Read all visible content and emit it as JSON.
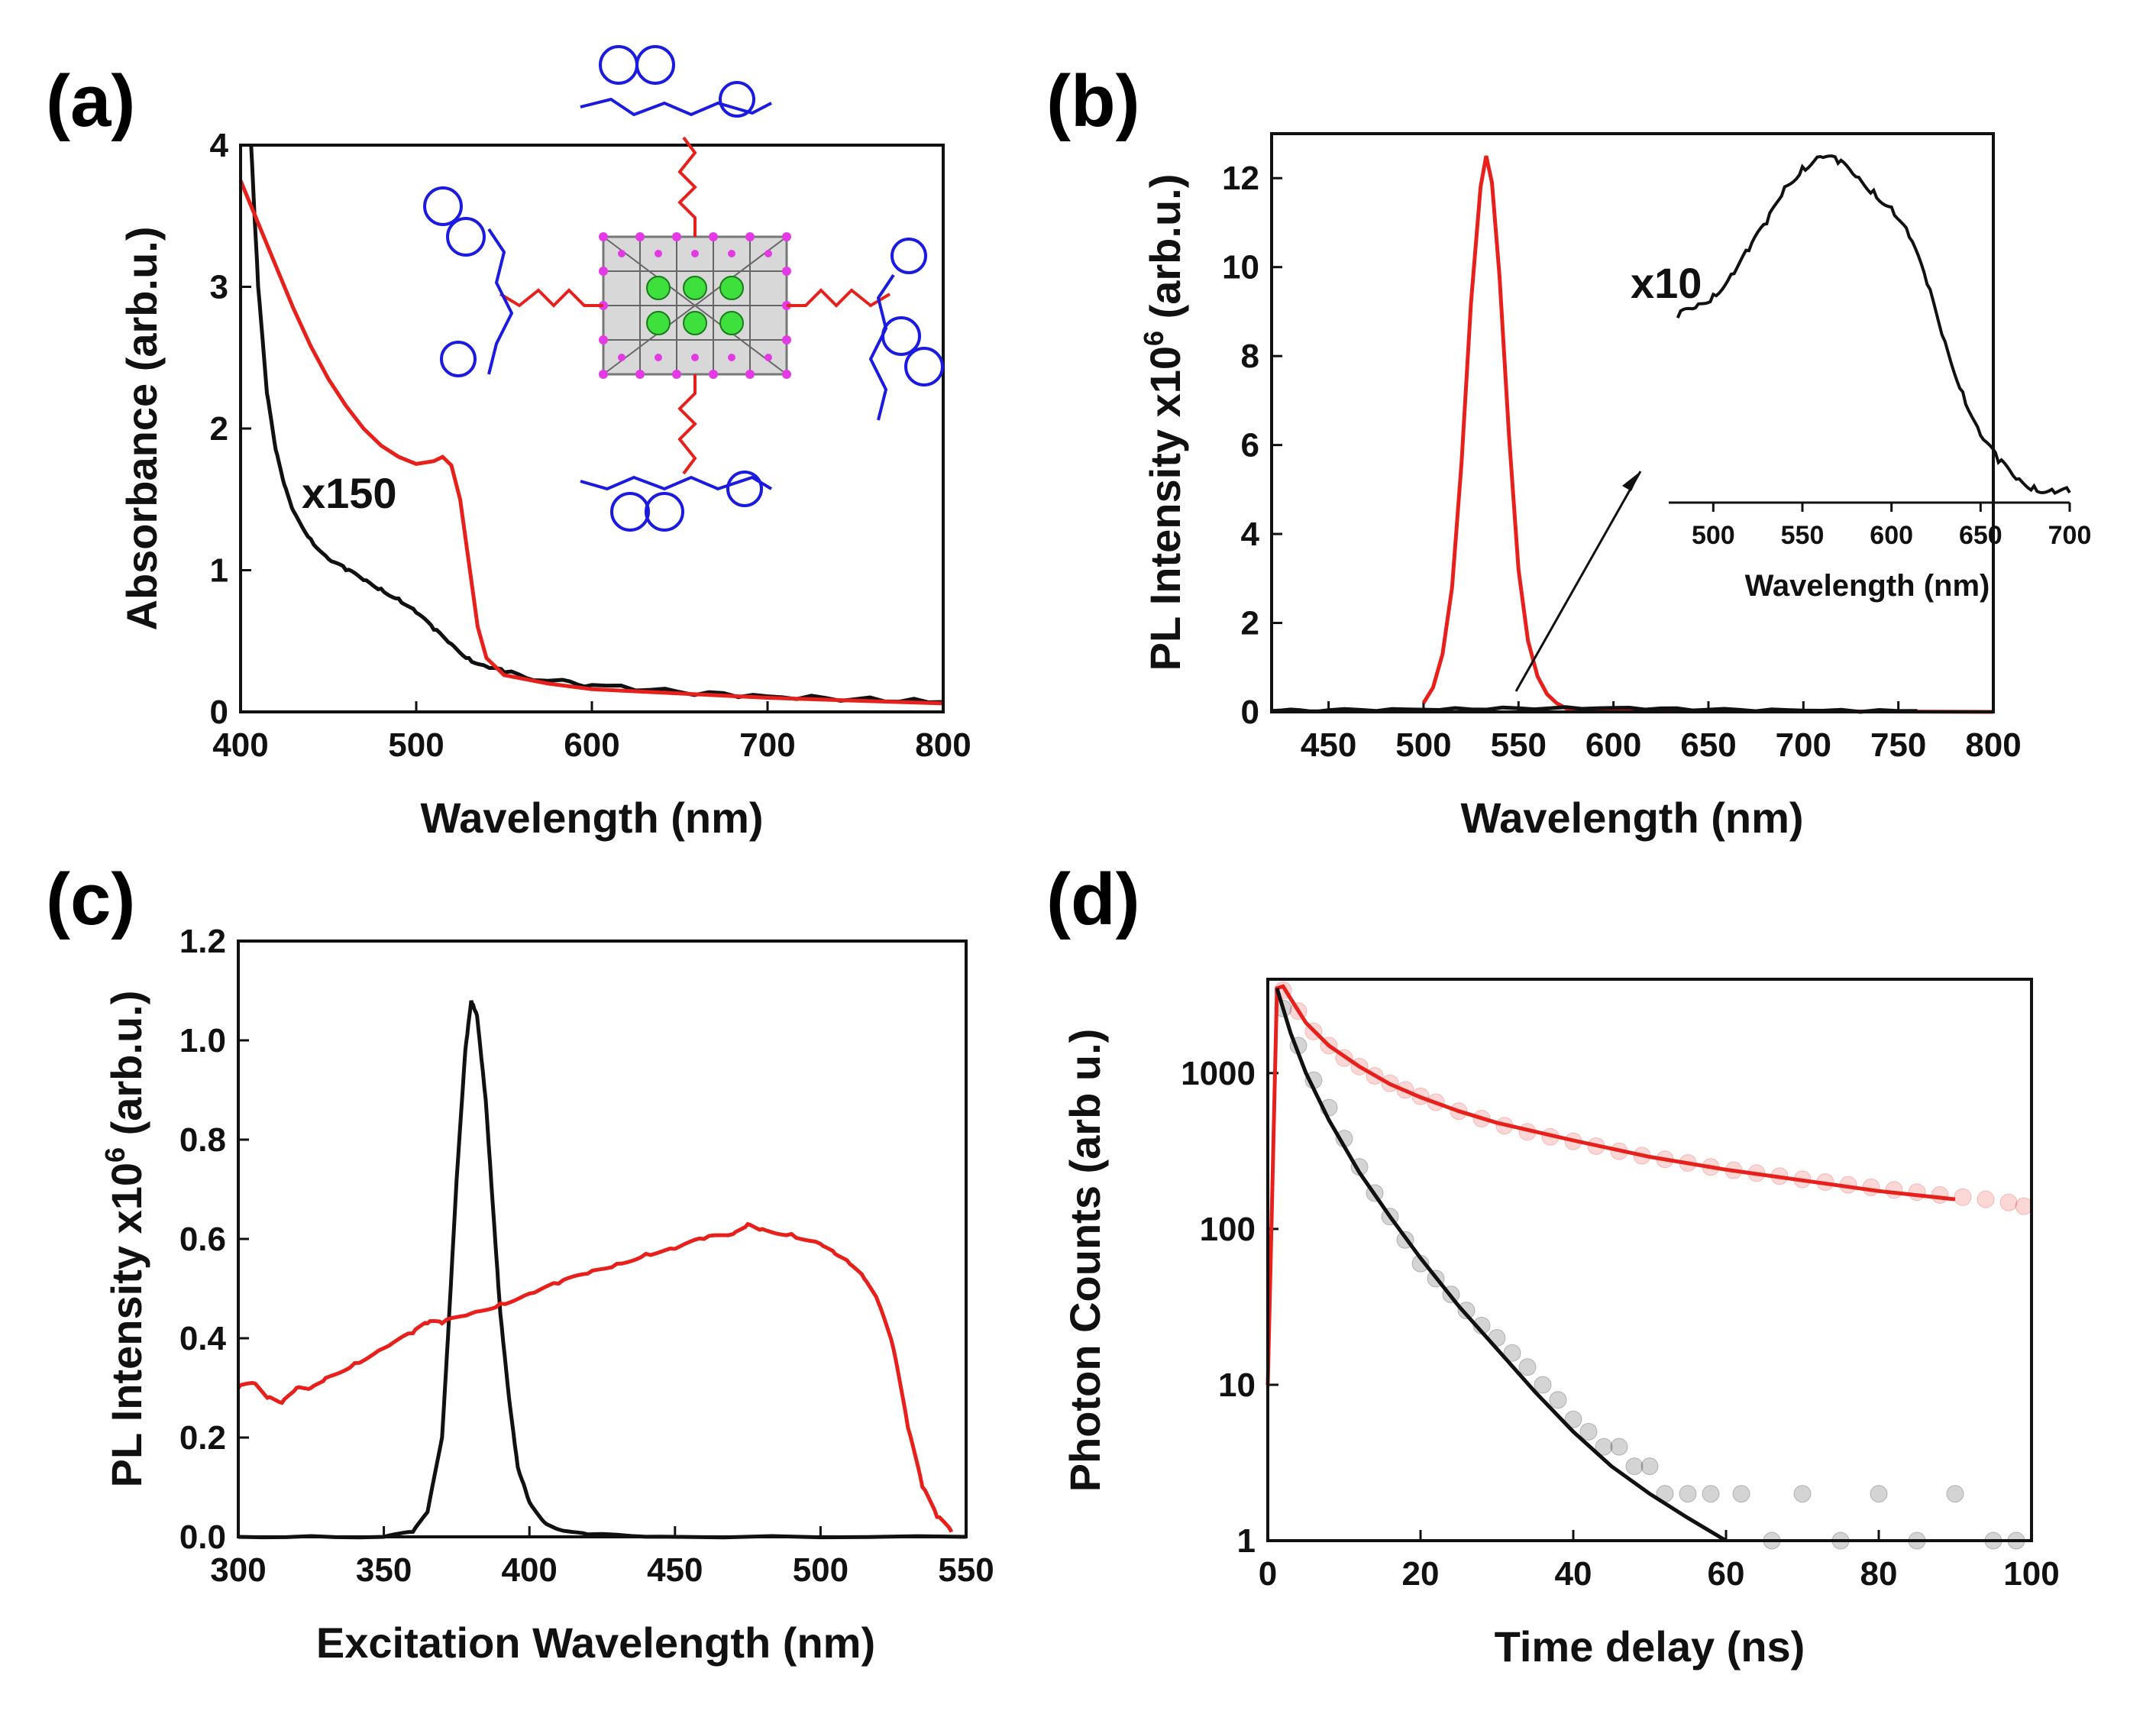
{
  "chart_data": [
    {
      "panel": "(a)",
      "type": "line",
      "xlabel": "Wavelength (nm)",
      "ylabel": "Absorbance (arb.u.)",
      "xlim": [
        400,
        800
      ],
      "ylim": [
        0,
        4
      ],
      "xticks": [
        400,
        500,
        600,
        700,
        800
      ],
      "yticks": [
        0,
        1,
        2,
        3,
        4
      ],
      "annotations": [
        "x150"
      ],
      "series": [
        {
          "name": "black",
          "color": "#111111",
          "x": [
            406,
            410,
            415,
            420,
            425,
            430,
            440,
            450,
            460,
            470,
            480,
            490,
            500,
            510,
            520,
            530,
            540,
            550,
            575,
            600,
            650,
            700,
            750,
            800
          ],
          "y": [
            4.0,
            3.0,
            2.25,
            1.85,
            1.6,
            1.42,
            1.22,
            1.08,
            1.0,
            0.93,
            0.87,
            0.8,
            0.7,
            0.58,
            0.48,
            0.38,
            0.32,
            0.28,
            0.22,
            0.19,
            0.14,
            0.11,
            0.09,
            0.07
          ]
        },
        {
          "name": "red",
          "color": "#e8201b",
          "x": [
            400,
            410,
            420,
            430,
            440,
            450,
            460,
            470,
            480,
            490,
            500,
            510,
            515,
            520,
            525,
            530,
            535,
            540,
            550,
            575,
            600,
            650,
            700,
            750,
            800
          ],
          "y": [
            3.75,
            3.45,
            3.15,
            2.85,
            2.58,
            2.35,
            2.16,
            2.0,
            1.88,
            1.8,
            1.75,
            1.77,
            1.8,
            1.74,
            1.5,
            1.05,
            0.6,
            0.38,
            0.26,
            0.2,
            0.16,
            0.13,
            0.1,
            0.08,
            0.06
          ]
        }
      ]
    },
    {
      "panel": "(b)",
      "type": "line",
      "xlabel": "Wavelength (nm)",
      "ylabel_main": "PL Intensity x10",
      "ylabel_sup": "6",
      "ylabel_tail": " (arb.u.)",
      "xlim": [
        420,
        800
      ],
      "ylim": [
        0,
        13
      ],
      "xticks": [
        450,
        500,
        550,
        600,
        650,
        700,
        750,
        800
      ],
      "yticks": [
        0,
        2,
        4,
        6,
        8,
        10,
        12
      ],
      "series": [
        {
          "name": "red",
          "color": "#e8201b",
          "x": [
            500,
            505,
            510,
            515,
            520,
            525,
            530,
            533,
            536,
            540,
            545,
            550,
            555,
            560,
            565,
            570,
            575,
            580,
            800
          ],
          "y": [
            0.2,
            0.55,
            1.3,
            2.8,
            5.6,
            9.2,
            11.8,
            12.5,
            11.9,
            9.8,
            6.2,
            3.2,
            1.6,
            0.8,
            0.4,
            0.2,
            0.08,
            0.03,
            0.0
          ]
        },
        {
          "name": "black",
          "color": "#111111",
          "x": [
            420,
            450,
            500,
            550,
            600,
            650,
            700,
            760
          ],
          "y": [
            0.02,
            0.04,
            0.05,
            0.08,
            0.09,
            0.05,
            0.03,
            0.02
          ]
        }
      ],
      "inset": {
        "annotation": "x10",
        "xlabel": "Wavelength (nm)",
        "xlim": [
          475,
          700
        ],
        "xticks": [
          500,
          550,
          600,
          650,
          700
        ],
        "series": {
          "name": "black",
          "color": "#111111",
          "x": [
            480,
            490,
            500,
            510,
            520,
            530,
            540,
            550,
            560,
            570,
            580,
            590,
            600,
            610,
            620,
            630,
            640,
            650,
            660,
            670,
            680,
            690,
            700
          ],
          "y": [
            0.52,
            0.55,
            0.59,
            0.65,
            0.72,
            0.8,
            0.91,
            0.97,
            1.0,
            0.98,
            0.94,
            0.9,
            0.85,
            0.76,
            0.62,
            0.45,
            0.3,
            0.17,
            0.09,
            0.04,
            0.02,
            0.01,
            0.0
          ]
        }
      }
    },
    {
      "panel": "(c)",
      "type": "line",
      "xlabel": "Excitation Wavelength (nm)",
      "ylabel_main": "PL Intensity x10",
      "ylabel_sup": "6",
      "ylabel_tail": " (arb.u.)",
      "xlim": [
        300,
        550
      ],
      "ylim": [
        0,
        1.2
      ],
      "xticks": [
        300,
        350,
        400,
        450,
        500,
        550
      ],
      "yticks": [
        0.0,
        0.2,
        0.4,
        0.6,
        0.8,
        1.0,
        1.2
      ],
      "series": [
        {
          "name": "black",
          "color": "#111111",
          "x": [
            300,
            350,
            360,
            365,
            370,
            372,
            375,
            378,
            380,
            382,
            385,
            388,
            390,
            393,
            396,
            400,
            405,
            410,
            420,
            450,
            550
          ],
          "y": [
            0.0,
            0.0,
            0.01,
            0.05,
            0.2,
            0.4,
            0.72,
            0.98,
            1.08,
            1.05,
            0.88,
            0.62,
            0.45,
            0.28,
            0.14,
            0.07,
            0.03,
            0.015,
            0.005,
            0.0,
            0.0
          ]
        },
        {
          "name": "red",
          "color": "#e8201b",
          "x": [
            300,
            305,
            310,
            315,
            320,
            325,
            330,
            340,
            350,
            360,
            365,
            370,
            380,
            390,
            400,
            410,
            420,
            430,
            440,
            450,
            460,
            470,
            475,
            480,
            490,
            500,
            505,
            510,
            515,
            520,
            525,
            530,
            535,
            540,
            545
          ],
          "y": [
            0.3,
            0.31,
            0.28,
            0.27,
            0.3,
            0.3,
            0.32,
            0.35,
            0.38,
            0.41,
            0.43,
            0.43,
            0.45,
            0.47,
            0.49,
            0.51,
            0.53,
            0.55,
            0.57,
            0.58,
            0.6,
            0.61,
            0.63,
            0.62,
            0.61,
            0.59,
            0.57,
            0.55,
            0.52,
            0.47,
            0.38,
            0.22,
            0.1,
            0.04,
            0.01
          ]
        }
      ]
    },
    {
      "panel": "(d)",
      "type": "scatter",
      "xlabel": "Time delay (ns)",
      "ylabel": "Photon Counts (arb u.)",
      "yscale": "log",
      "xlim": [
        0,
        100
      ],
      "ylim": [
        1,
        4000
      ],
      "xticks": [
        0,
        20,
        40,
        60,
        80,
        100
      ],
      "yticks": [
        1,
        10,
        100,
        1000
      ],
      "series": [
        {
          "name": "red data",
          "color": "#e8201b",
          "fit_x": [
            0,
            0.7,
            1.2,
            2,
            3,
            5,
            8,
            12,
            16,
            20,
            25,
            30,
            40,
            50,
            60,
            70,
            80,
            90
          ],
          "fit_y": [
            10,
            300,
            3500,
            3600,
            3000,
            2100,
            1500,
            1100,
            850,
            700,
            570,
            480,
            370,
            290,
            240,
            205,
            175,
            155
          ],
          "points_x": [
            2,
            4,
            6,
            8,
            10,
            12,
            14,
            16,
            18,
            20,
            22,
            25,
            28,
            31,
            34,
            37,
            40,
            43,
            46,
            49,
            52,
            55,
            58,
            61,
            64,
            67,
            70,
            73,
            76,
            79,
            82,
            85,
            88,
            91,
            94,
            97,
            99
          ],
          "points_y": [
            3400,
            2500,
            1850,
            1500,
            1250,
            1100,
            960,
            860,
            780,
            710,
            650,
            570,
            510,
            460,
            420,
            390,
            365,
            340,
            315,
            295,
            280,
            265,
            250,
            238,
            228,
            218,
            208,
            200,
            192,
            185,
            178,
            172,
            165,
            160,
            155,
            148,
            140
          ]
        },
        {
          "name": "black data",
          "color": "#111111",
          "fit_x": [
            1.2,
            3,
            5,
            8,
            12,
            16,
            20,
            25,
            30,
            35,
            40,
            45,
            50,
            55,
            60
          ],
          "fit_y": [
            3500,
            1800,
            1000,
            500,
            230,
            120,
            65,
            32,
            17,
            9,
            5,
            3,
            2,
            1.4,
            1.0
          ],
          "points_x": [
            2,
            4,
            6,
            8,
            10,
            12,
            14,
            16,
            18,
            20,
            22,
            24,
            26,
            28,
            30,
            32,
            34,
            36,
            38,
            40,
            42,
            44,
            46,
            48,
            50,
            52,
            55,
            58,
            62,
            66,
            70,
            75,
            80,
            85,
            90,
            95,
            98
          ],
          "points_y": [
            2600,
            1500,
            900,
            600,
            380,
            250,
            170,
            120,
            85,
            60,
            48,
            38,
            30,
            24,
            20,
            16,
            13,
            10,
            8,
            6,
            5,
            4,
            4,
            3,
            3,
            2,
            2,
            2,
            2,
            1,
            2,
            1,
            2,
            1,
            2,
            1,
            1
          ]
        }
      ]
    }
  ]
}
